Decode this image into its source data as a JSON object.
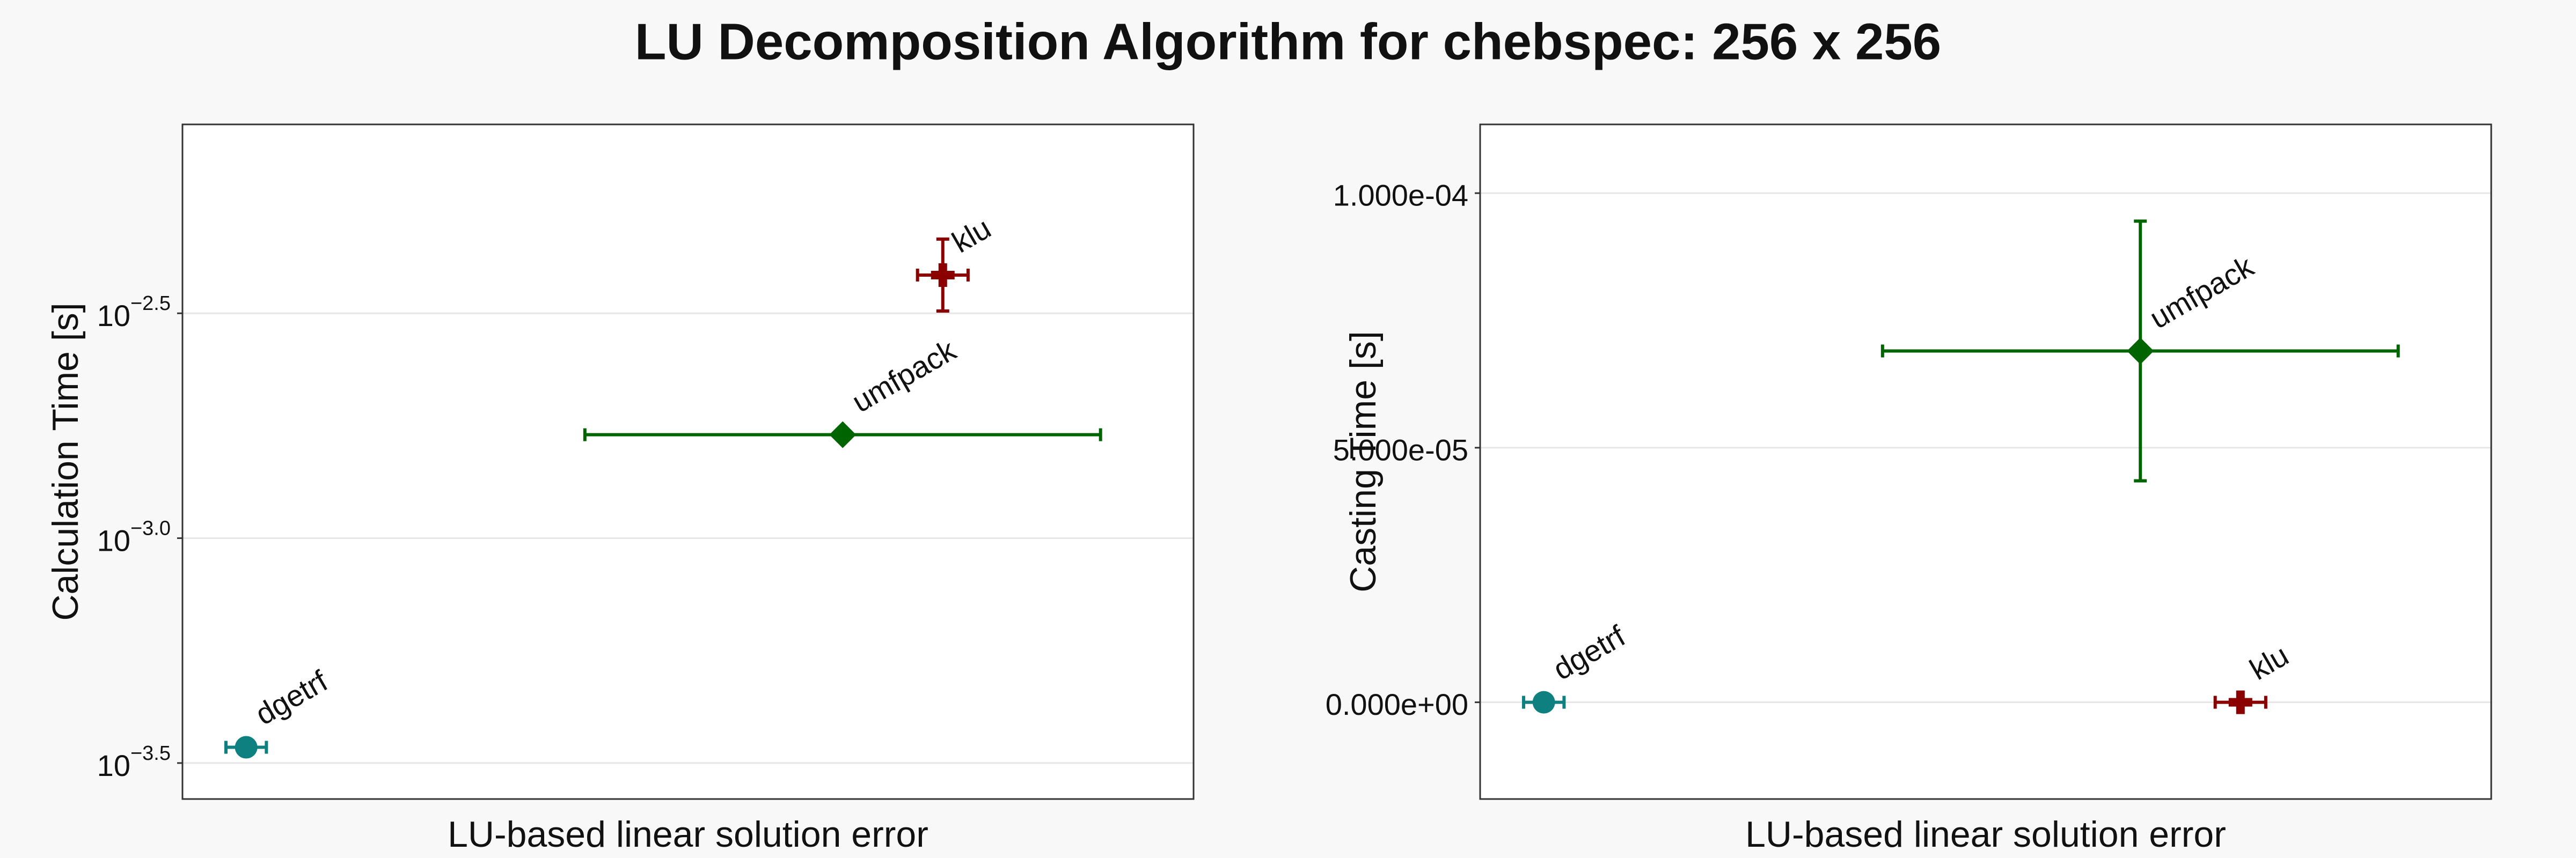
{
  "figure": {
    "title": "LU Decomposition Algorithm for chebspec: 256 x 256"
  },
  "chart_data": [
    {
      "type": "scatter",
      "xlabel": "LU-based linear solution error",
      "ylabel": "Calculation Time [s]",
      "y_scale": "log10",
      "ylim_log10": [
        -3.58,
        -2.08
      ],
      "y_ticks": [
        {
          "value_log10": -2.5,
          "base": "10",
          "exp": "−2.5"
        },
        {
          "value_log10": -3.0,
          "base": "10",
          "exp": "−3.0"
        },
        {
          "value_log10": -3.5,
          "base": "10",
          "exp": "−3.5"
        }
      ],
      "grid": "horizontal",
      "series": [
        {
          "name": "dgetrf",
          "marker": "circle",
          "color": "#0e8080",
          "x": 0.063,
          "x_err": 0.02,
          "y_log10": -3.465,
          "y_err_log10": null
        },
        {
          "name": "umfpack",
          "marker": "diamond",
          "color": "#006400",
          "x": 0.653,
          "x_err": 0.255,
          "y_log10": -2.77,
          "y_err_log10": null
        },
        {
          "name": "klu",
          "marker": "cross",
          "color": "#8b0000",
          "x": 0.752,
          "x_err": 0.025,
          "y_log10": -2.415,
          "y_err_log10": 0.08
        }
      ]
    },
    {
      "type": "scatter",
      "xlabel": "LU-based linear solution error",
      "ylabel": "Casting Time [s]",
      "y_scale": "linear",
      "ylim": [
        -1.9e-05,
        0.0001135
      ],
      "y_ticks": [
        {
          "value": 0,
          "label": "0.000e+00"
        },
        {
          "value": 5e-05,
          "label": "5.000e-05"
        },
        {
          "value": 0.0001,
          "label": "1.000e-04"
        }
      ],
      "grid": "horizontal",
      "series": [
        {
          "name": "dgetrf",
          "marker": "circle",
          "color": "#0e8080",
          "x": 0.063,
          "x_err": 0.02,
          "y": 0,
          "y_err": null
        },
        {
          "name": "umfpack",
          "marker": "diamond",
          "color": "#006400",
          "x": 0.653,
          "x_err": 0.255,
          "y": 6.9e-05,
          "y_err": 2.55e-05
        },
        {
          "name": "klu",
          "marker": "cross",
          "color": "#8b0000",
          "x": 0.752,
          "x_err": 0.025,
          "y": 0,
          "y_err": null
        }
      ]
    }
  ]
}
